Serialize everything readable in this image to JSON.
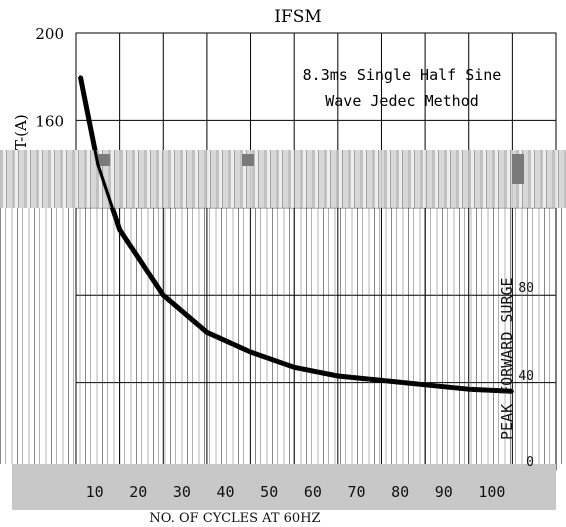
{
  "chart_data": {
    "type": "line",
    "title": "IFSM",
    "annotation": [
      "8.3ms Single Half Sine",
      "Wave Jedec Method"
    ],
    "xlabel": "NO. OF CYCLES AT 60HZ",
    "ylabel_partial_left": "T-(A)",
    "ylabel_partial_right": "PEAK FORWARD SURGE",
    "x_ticks": [
      10,
      20,
      30,
      40,
      50,
      60,
      70,
      80,
      90,
      100
    ],
    "y_ticks_left": [
      200,
      160
    ],
    "y_ticks_right": [
      80,
      40,
      0
    ],
    "ylim": [
      0,
      200
    ],
    "xlim": [
      0,
      110
    ],
    "grid": true,
    "series": [
      {
        "x": [
          1,
          2,
          5,
          10,
          20,
          30,
          40,
          50,
          60,
          70,
          80,
          90,
          100
        ],
        "values": [
          180,
          170,
          140,
          110,
          80,
          63,
          54,
          47,
          43,
          41,
          39,
          37,
          36
        ]
      }
    ],
    "line_color": "#000000"
  }
}
